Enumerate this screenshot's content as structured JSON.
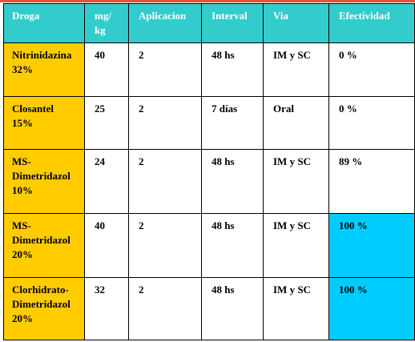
{
  "colors": {
    "header_bg": "#33cccc",
    "header_text": "#ffffff",
    "drug_cell_bg": "#ffcc00",
    "highlight_bg": "#00ccff",
    "top_rule": "#e8503a"
  },
  "table": {
    "headers": [
      "Droga",
      "mg/\nkg",
      "Aplicacion",
      "Interval",
      "Via",
      "Efectividad"
    ],
    "rows": [
      {
        "droga": "Nitrinidazina\n32%",
        "mgkg": "40",
        "aplicacion": "2",
        "interval": "48 hs",
        "via": "IM y SC",
        "efectividad": "0 %",
        "highlight": false
      },
      {
        "droga": "Closantel\n15%",
        "mgkg": "25",
        "aplicacion": "2",
        "interval": "7 días",
        "via": "Oral",
        "efectividad": "0 %",
        "highlight": false
      },
      {
        "droga": "MS-\nDimetridazol\n10%",
        "mgkg": "24",
        "aplicacion": "2",
        "interval": "48 hs",
        "via": "IM y SC",
        "efectividad": "89 %",
        "highlight": false
      },
      {
        "droga": "MS-\nDimetridazol\n20%",
        "mgkg": "40",
        "aplicacion": "2",
        "interval": "48 hs",
        "via": "IM y SC",
        "efectividad": "100 %",
        "highlight": true
      },
      {
        "droga": "Clorhidrato-\nDimetridazol\n20%",
        "mgkg": "32",
        "aplicacion": "2",
        "interval": "48 hs",
        "via": "IM y SC",
        "efectividad": "100 %",
        "highlight": true
      }
    ]
  }
}
